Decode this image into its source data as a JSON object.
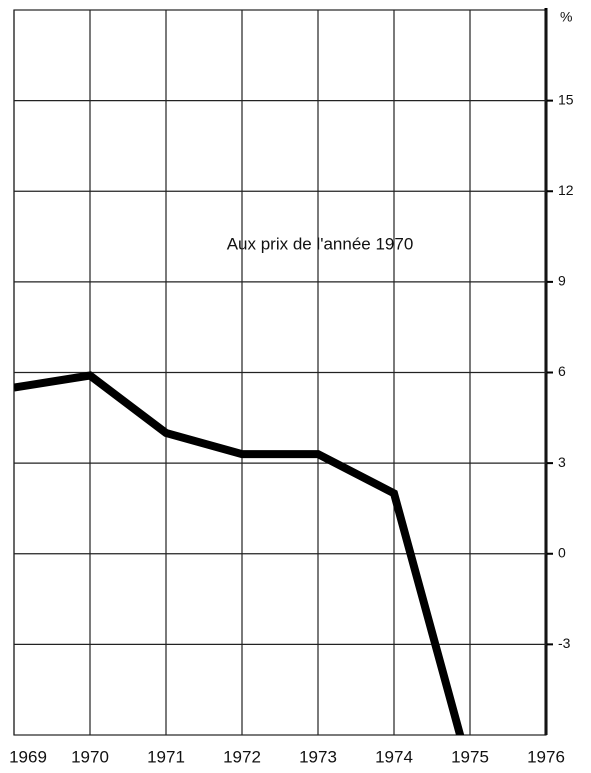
{
  "chart_data": {
    "type": "line",
    "annotation": "Aux prix de l'année 1970",
    "y_axis_label": "%",
    "x": [
      1969,
      1970,
      1971,
      1972,
      1973,
      1974,
      1975
    ],
    "series": [
      {
        "name": null,
        "color": "#000000",
        "values": [
          5.5,
          5.9,
          4.0,
          3.3,
          3.3,
          2.0,
          -7.2
        ]
      }
    ],
    "xlim": [
      1969,
      1976
    ],
    "xticks": [
      1969,
      1970,
      1971,
      1972,
      1973,
      1974,
      1975,
      1976
    ],
    "ylim": [
      -6,
      18
    ],
    "yticks": [
      -3,
      0,
      3,
      6,
      9,
      12,
      15
    ],
    "grid": true
  }
}
